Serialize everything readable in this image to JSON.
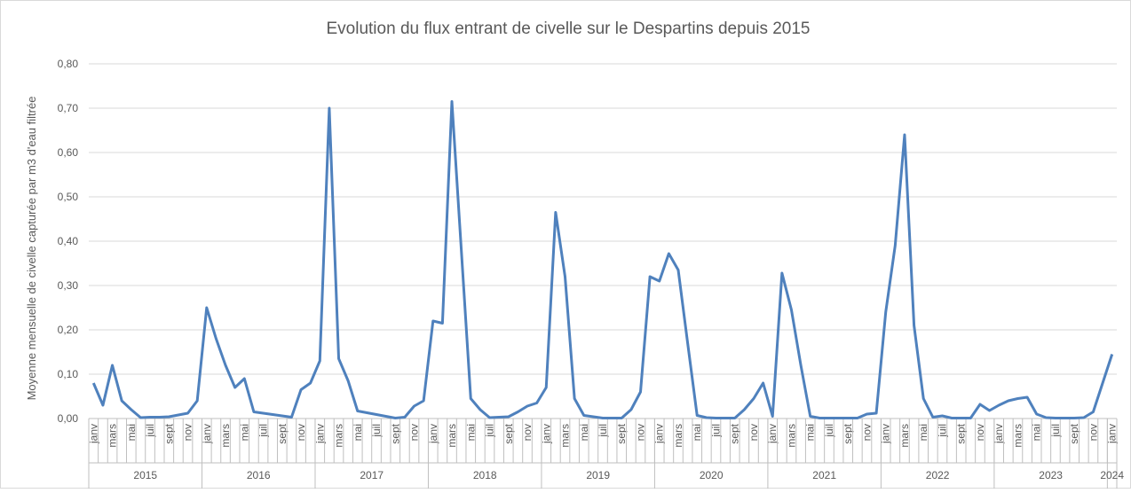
{
  "chart_data": {
    "type": "line",
    "title": "Evolution du flux entrant de civelle sur le Despartins depuis 2015",
    "y_label": "Moyenne mensuelle de civelle capturée par m3 d'eau filtrée",
    "ylim": [
      0,
      0.8
    ],
    "yticks": [
      {
        "value": 0,
        "label": "0,00"
      },
      {
        "value": 0.1,
        "label": "0,10"
      },
      {
        "value": 0.2,
        "label": "0,20"
      },
      {
        "value": 0.3,
        "label": "0,30"
      },
      {
        "value": 0.4,
        "label": "0,40"
      },
      {
        "value": 0.5,
        "label": "0,50"
      },
      {
        "value": 0.6,
        "label": "0,60"
      },
      {
        "value": 0.7,
        "label": "0,70"
      },
      {
        "value": 0.8,
        "label": "0,80"
      }
    ],
    "grid": true,
    "groups": [
      {
        "name": "2015",
        "categories": [
          "janv",
          null,
          "mars",
          null,
          "mai",
          null,
          "juil",
          null,
          "sept",
          null,
          "nov",
          null
        ]
      },
      {
        "name": "2016",
        "categories": [
          "janv",
          null,
          "mars",
          null,
          "mai",
          null,
          "juil",
          null,
          "sept",
          null,
          "nov",
          null
        ]
      },
      {
        "name": "2017",
        "categories": [
          "janv",
          null,
          "mars",
          null,
          "mai",
          null,
          "juil",
          null,
          "sept",
          null,
          "nov",
          null
        ]
      },
      {
        "name": "2018",
        "categories": [
          "janv",
          null,
          "mars",
          null,
          "mai",
          null,
          "juil",
          null,
          "sept",
          null,
          "nov",
          null
        ]
      },
      {
        "name": "2019",
        "categories": [
          "janv",
          null,
          "mars",
          null,
          "mai",
          null,
          "juil",
          null,
          "sept",
          null,
          "nov",
          null
        ]
      },
      {
        "name": "2020",
        "categories": [
          "janv",
          null,
          "mars",
          null,
          "mai",
          null,
          "juil",
          null,
          "sept",
          null,
          "nov",
          null
        ]
      },
      {
        "name": "2021",
        "categories": [
          "janv",
          null,
          "mars",
          null,
          "mai",
          null,
          "juil",
          null,
          "sept",
          null,
          "nov",
          null
        ]
      },
      {
        "name": "2022",
        "categories": [
          "janv",
          null,
          "mars",
          null,
          "mai",
          null,
          "juil",
          null,
          "sept",
          null,
          "nov",
          null
        ]
      },
      {
        "name": "2023",
        "categories": [
          "janv",
          null,
          "mars",
          null,
          "mai",
          null,
          "juil",
          null,
          "sept",
          null,
          "nov",
          null
        ]
      },
      {
        "name": "2024",
        "categories": [
          "janv"
        ]
      }
    ],
    "color": "#4f81bd",
    "values": [
      0.08,
      0.03,
      0.12,
      0.04,
      0.02,
      0.002,
      0.003,
      0.003,
      0.004,
      0.008,
      0.012,
      0.04,
      0.25,
      0.18,
      0.12,
      0.07,
      0.09,
      0.015,
      0.012,
      0.009,
      0.006,
      0.003,
      0.065,
      0.08,
      0.13,
      0.7,
      0.135,
      0.085,
      0.017,
      0.013,
      0.009,
      0.005,
      0.001,
      0.003,
      0.028,
      0.04,
      0.22,
      0.215,
      0.715,
      0.38,
      0.045,
      0.02,
      0.002,
      0.003,
      0.004,
      0.015,
      0.028,
      0.035,
      0.07,
      0.465,
      0.32,
      0.045,
      0.007,
      0.004,
      0.001,
      0.001,
      0.001,
      0.02,
      0.06,
      0.32,
      0.31,
      0.372,
      0.335,
      0.17,
      0.007,
      0.002,
      0.001,
      0.001,
      0.001,
      0.02,
      0.045,
      0.08,
      0.005,
      0.328,
      0.245,
      0.12,
      0.005,
      0.001,
      0.001,
      0.001,
      0.001,
      0.001,
      0.01,
      0.012,
      0.24,
      0.39,
      0.64,
      0.21,
      0.045,
      0.003,
      0.006,
      0.001,
      0.001,
      0.001,
      0.032,
      0.018,
      0.03,
      0.04,
      0.045,
      0.048,
      0.01,
      0.002,
      0.001,
      0.001,
      0.001,
      0.002,
      0.015,
      0.08,
      0.145
    ]
  }
}
